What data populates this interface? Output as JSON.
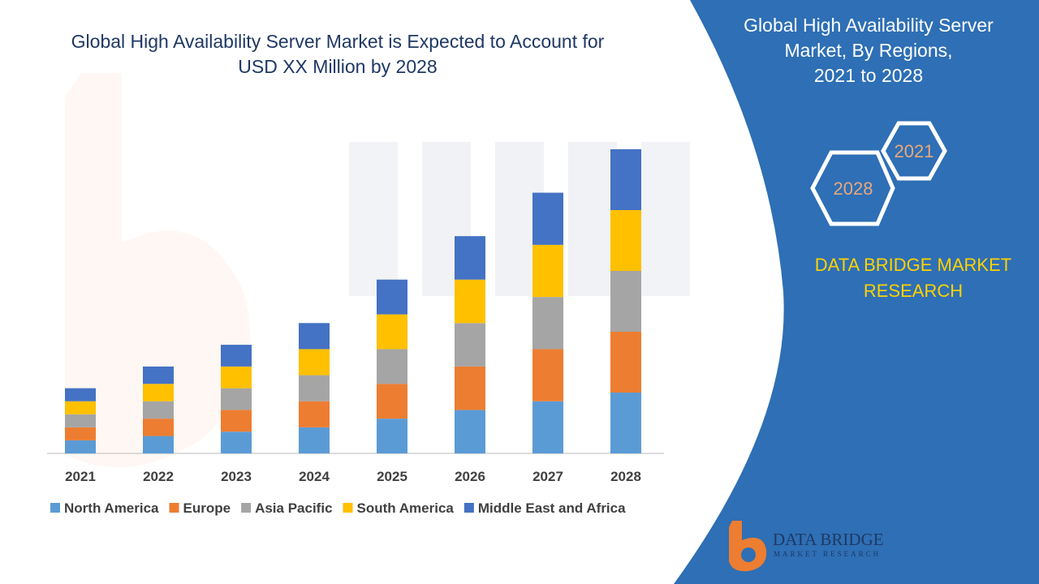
{
  "header": {
    "title_line1": "Global High Availability Server Market is Expected to Account for",
    "title_line2": "USD XX Million by 2028"
  },
  "panel": {
    "title_line1": "Global High Availability Server",
    "title_line2": "Market, By Regions,",
    "title_line3": "2021 to 2028",
    "hex_start": "2021",
    "hex_end": "2028",
    "brand_line1": "DATA BRIDGE MARKET",
    "brand_line2": "RESEARCH",
    "logo_line1": "DATA BRIDGE",
    "logo_line2": "MARKET RESEARCH"
  },
  "colors": {
    "panel_blue": "#2e6fb5",
    "title_navy": "#1f3864",
    "brand_yellow": "#ffd200",
    "hex_outline": "#ffffff"
  },
  "chart_data": {
    "type": "bar",
    "stacked": true,
    "categories": [
      "2021",
      "2022",
      "2023",
      "2024",
      "2025",
      "2026",
      "2027",
      "2028"
    ],
    "series": [
      {
        "name": "North America",
        "color": "#5b9bd5",
        "values": [
          3,
          4,
          5,
          6,
          8,
          10,
          12,
          14
        ]
      },
      {
        "name": "Europe",
        "color": "#ed7d31",
        "values": [
          3,
          4,
          5,
          6,
          8,
          10,
          12,
          14
        ]
      },
      {
        "name": "Asia Pacific",
        "color": "#a5a5a5",
        "values": [
          3,
          4,
          5,
          6,
          8,
          10,
          12,
          14
        ]
      },
      {
        "name": "South America",
        "color": "#ffc000",
        "values": [
          3,
          4,
          5,
          6,
          8,
          10,
          12,
          14
        ]
      },
      {
        "name": "Middle East and Africa",
        "color": "#4472c4",
        "values": [
          3,
          4,
          5,
          6,
          8,
          10,
          12,
          14
        ]
      }
    ],
    "ylim": [
      0,
      70
    ],
    "grid": false,
    "legend": "bottom"
  }
}
